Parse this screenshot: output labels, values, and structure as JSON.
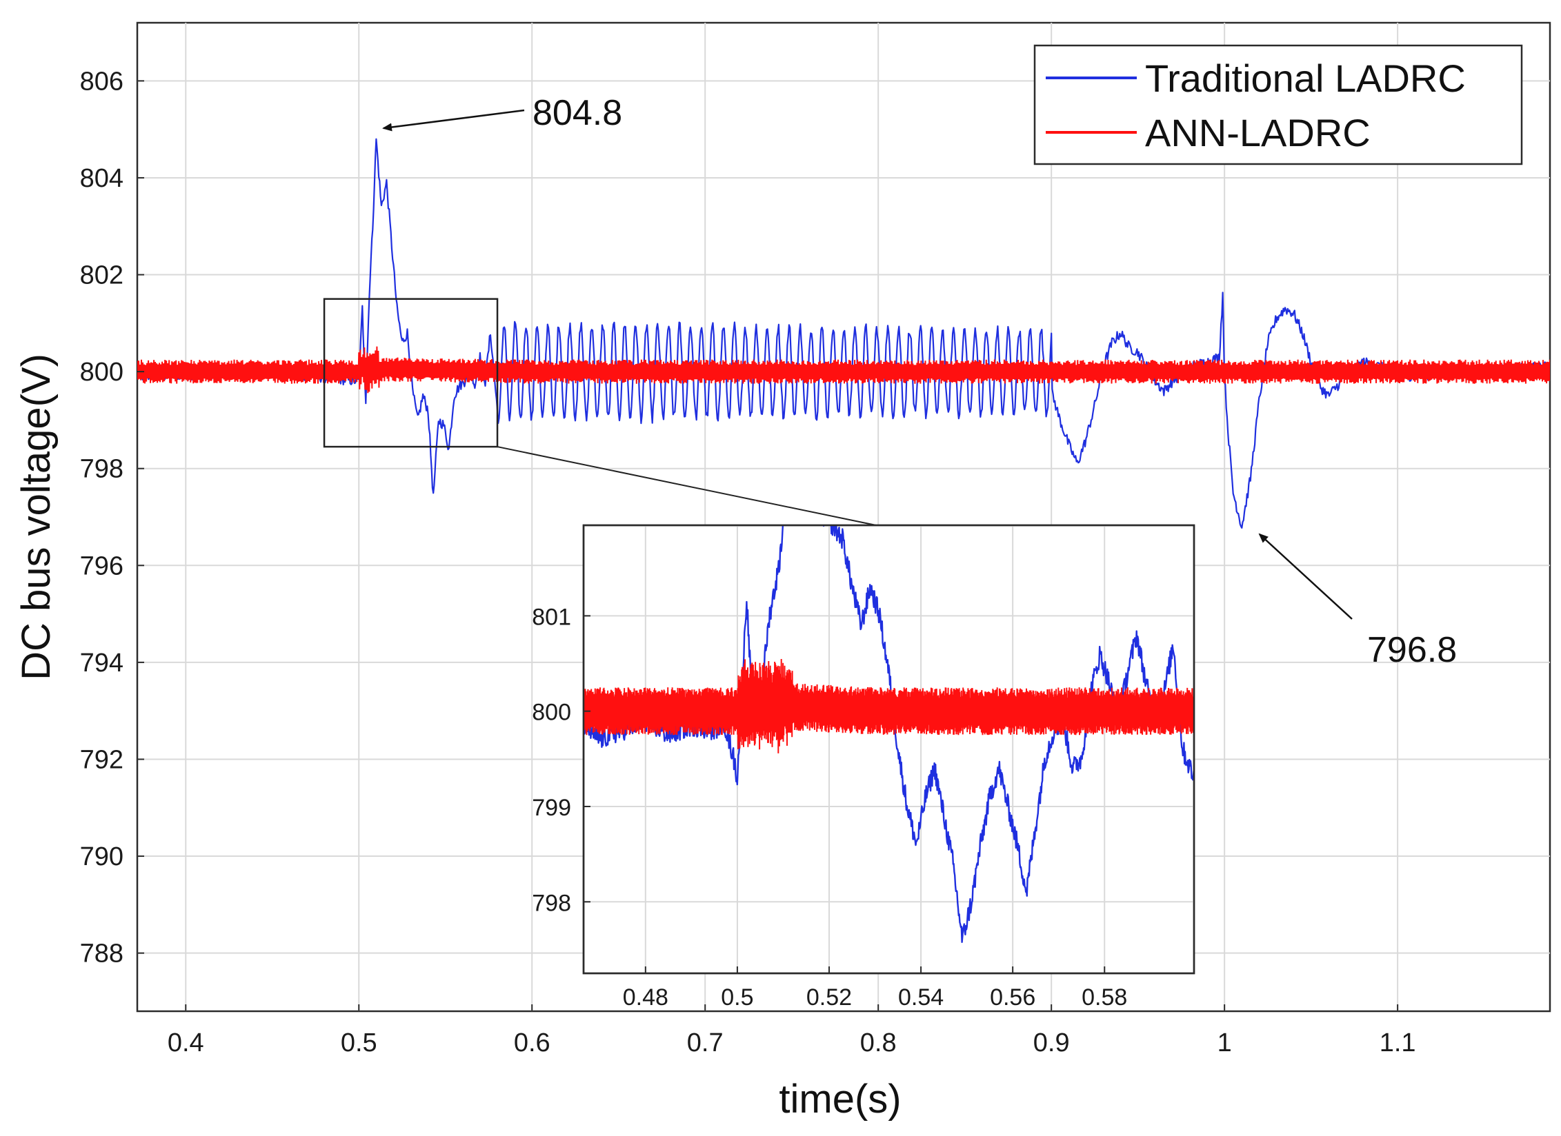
{
  "chart_data": {
    "type": "line",
    "xlabel": "time(s)",
    "ylabel": "DC bus voltage(V)",
    "xlim": [
      0.372,
      1.188
    ],
    "ylim": [
      786.8,
      807.2
    ],
    "xticks": [
      0.4,
      0.5,
      0.6,
      0.7,
      0.8,
      0.9,
      1,
      1.1
    ],
    "xtick_labels": [
      "0.4",
      "0.5",
      "0.6",
      "0.7",
      "0.8",
      "0.9",
      "1",
      "1.1"
    ],
    "yticks": [
      788,
      790,
      792,
      794,
      796,
      798,
      800,
      802,
      804,
      806
    ],
    "ytick_labels": [
      "788",
      "790",
      "792",
      "794",
      "796",
      "798",
      "800",
      "802",
      "804",
      "806"
    ],
    "grid": true,
    "legend": {
      "position": "top-right",
      "entries": [
        {
          "label": "Traditional LADRC",
          "color": "#1f2fdf"
        },
        {
          "label": "ANN-LADRC",
          "color": "#ff1010"
        }
      ]
    },
    "series": [
      {
        "name": "Traditional LADRC",
        "color": "#1f2fdf",
        "x": [
          0.372,
          0.45,
          0.5,
          0.502,
          0.504,
          0.506,
          0.508,
          0.51,
          0.513,
          0.516,
          0.519,
          0.522,
          0.525,
          0.528,
          0.531,
          0.534,
          0.537,
          0.54,
          0.543,
          0.546,
          0.549,
          0.552,
          0.555,
          0.558,
          0.561,
          0.564,
          0.567,
          0.57,
          0.573,
          0.576,
          0.58,
          0.9,
          0.905,
          0.91,
          0.915,
          0.92,
          0.925,
          0.93,
          0.935,
          0.94,
          0.945,
          0.95,
          0.955,
          0.96,
          0.965,
          0.97,
          0.98,
          0.99,
          0.997,
          0.999,
          1.0,
          1.002,
          1.005,
          1.01,
          1.015,
          1.02,
          1.025,
          1.03,
          1.035,
          1.04,
          1.045,
          1.05,
          1.055,
          1.06,
          1.065,
          1.07,
          1.08,
          1.09,
          1.1,
          1.188
        ],
        "y": [
          799.9,
          800.0,
          799.8,
          801.3,
          799.4,
          801.6,
          803.0,
          804.8,
          803.4,
          803.9,
          802.6,
          801.3,
          800.6,
          800.8,
          799.6,
          799.0,
          799.5,
          799.2,
          797.4,
          799.0,
          798.9,
          798.4,
          799.5,
          799.7,
          799.8,
          800.2,
          799.7,
          800.3,
          799.8,
          800.8,
          799.2,
          799.6,
          799.0,
          798.5,
          798.1,
          798.6,
          799.3,
          800.1,
          800.6,
          800.8,
          800.5,
          800.4,
          800.1,
          799.8,
          799.6,
          799.8,
          800.1,
          800.2,
          800.3,
          801.6,
          799.9,
          798.8,
          797.5,
          796.8,
          797.8,
          799.4,
          800.6,
          801.1,
          801.3,
          801.2,
          800.8,
          800.2,
          799.7,
          799.5,
          799.7,
          799.9,
          800.2,
          800.1,
          799.9,
          800.1
        ]
      },
      {
        "name": "ANN-LADRC",
        "color": "#ff1010",
        "x": [
          0.372,
          0.5,
          0.502,
          0.505,
          0.51,
          0.6,
          0.8,
          1.0,
          1.188
        ],
        "y": [
          800.0,
          800.0,
          800.1,
          800.0,
          800.05,
          800.0,
          800.0,
          800.0,
          800.0
        ],
        "band_halfwidth": 0.25
      }
    ],
    "annotations": [
      {
        "text": "804.8",
        "x": 0.51,
        "y": 804.8
      },
      {
        "text": "796.8",
        "x": 1.015,
        "y": 796.8
      }
    ],
    "zoom_box": {
      "x": [
        0.48,
        0.58
      ],
      "y": [
        798.45,
        801.5
      ]
    },
    "inset": {
      "xlim": [
        0.4665,
        0.5995
      ],
      "ylim": [
        797.25,
        801.95
      ],
      "xticks": [
        0.48,
        0.5,
        0.52,
        0.54,
        0.56,
        0.58
      ],
      "xtick_labels": [
        "0.48",
        "0.5",
        "0.52",
        "0.54",
        "0.56",
        "0.58"
      ],
      "yticks": [
        798,
        799,
        800,
        801
      ],
      "ytick_labels": [
        "798",
        "799",
        "800",
        "801"
      ],
      "series": [
        {
          "name": "Traditional LADRC",
          "color": "#1f2fdf",
          "x": [
            0.4665,
            0.47,
            0.475,
            0.48,
            0.485,
            0.49,
            0.495,
            0.497,
            0.499,
            0.5,
            0.501,
            0.502,
            0.503,
            0.504,
            0.505,
            0.507,
            0.509,
            0.511,
            0.513,
            0.515,
            0.517,
            0.52,
            0.523,
            0.525,
            0.527,
            0.529,
            0.531,
            0.533,
            0.535,
            0.537,
            0.539,
            0.541,
            0.543,
            0.545,
            0.547,
            0.549,
            0.551,
            0.553,
            0.555,
            0.557,
            0.559,
            0.561,
            0.563,
            0.565,
            0.567,
            0.569,
            0.571,
            0.573,
            0.575,
            0.577,
            0.579,
            0.581,
            0.583,
            0.585,
            0.587,
            0.589,
            0.591,
            0.593,
            0.595,
            0.597,
            0.5995
          ],
          "y": [
            799.85,
            799.7,
            799.8,
            799.9,
            799.75,
            799.85,
            799.8,
            799.9,
            799.55,
            799.3,
            800.2,
            801.2,
            800.3,
            799.8,
            800.1,
            801.0,
            801.5,
            802.4,
            803.0,
            802.6,
            802.1,
            802.0,
            801.8,
            801.3,
            800.9,
            801.3,
            801.0,
            800.4,
            799.6,
            799.0,
            798.6,
            799.1,
            799.4,
            798.9,
            798.4,
            797.6,
            798.0,
            798.6,
            799.1,
            799.4,
            799.0,
            798.6,
            798.1,
            798.8,
            799.5,
            799.8,
            799.9,
            799.4,
            799.5,
            800.2,
            800.6,
            800.3,
            799.9,
            800.4,
            800.8,
            800.3,
            799.9,
            800.2,
            800.7,
            799.6,
            799.3
          ]
        },
        {
          "name": "ANN-LADRC",
          "color": "#ff1010",
          "x": [
            0.4665,
            0.5,
            0.502,
            0.505,
            0.51,
            0.53,
            0.56,
            0.5995
          ],
          "y": [
            800.0,
            800.0,
            800.1,
            800.05,
            800.05,
            800.0,
            800.0,
            800.0
          ],
          "band_halfwidth": 0.25
        }
      ]
    }
  }
}
